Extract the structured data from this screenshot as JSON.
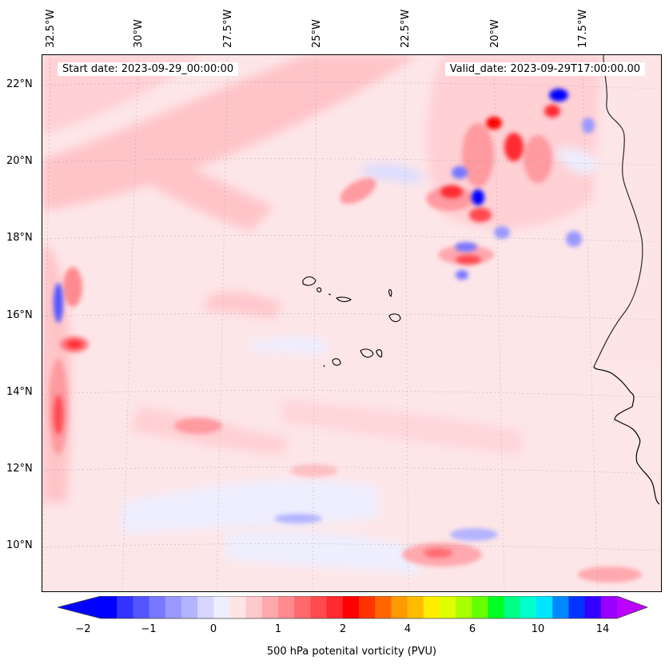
{
  "header": {
    "start_date": "Start date: 2023-09-29_00:00:00",
    "valid_date": "Valid_date: 2023-09-29T17:00:00.00"
  },
  "map": {
    "longitude_labels": [
      "32.5°W",
      "30°W",
      "27.5°W",
      "25°W",
      "22.5°W",
      "20°W",
      "17.5°W"
    ],
    "latitude_labels": [
      "22°N",
      "20°N",
      "18°N",
      "16°N",
      "14°N",
      "12°N",
      "10°N"
    ],
    "background_color": "#fde6e8",
    "coastline_color": "#000000"
  },
  "colorbar": {
    "title": "500 hPa potenital vorticity (PVU)",
    "tick_labels": [
      "−2",
      "−1",
      "0",
      "1",
      "2",
      "4",
      "6",
      "10",
      "14"
    ],
    "colors": [
      "#0000ff",
      "#3333ff",
      "#5555ff",
      "#7777ff",
      "#9999ff",
      "#b3b3ff",
      "#d6d6ff",
      "#eeeeff",
      "#ffe4e6",
      "#ffc8cc",
      "#ffa8ae",
      "#ff8a8f",
      "#ff6a6f",
      "#ff4a50",
      "#ff2a30",
      "#ff0000",
      "#ff3300",
      "#ff6600",
      "#ff9900",
      "#ffbb00",
      "#ffee00",
      "#ddff00",
      "#aaff00",
      "#66ff00",
      "#00ff22",
      "#00ff88",
      "#00ffcc",
      "#00e5ff",
      "#0088ff",
      "#0033ff",
      "#3300ff",
      "#9900ff"
    ],
    "under_color": "#0000ff",
    "over_color": "#bb00ff"
  }
}
